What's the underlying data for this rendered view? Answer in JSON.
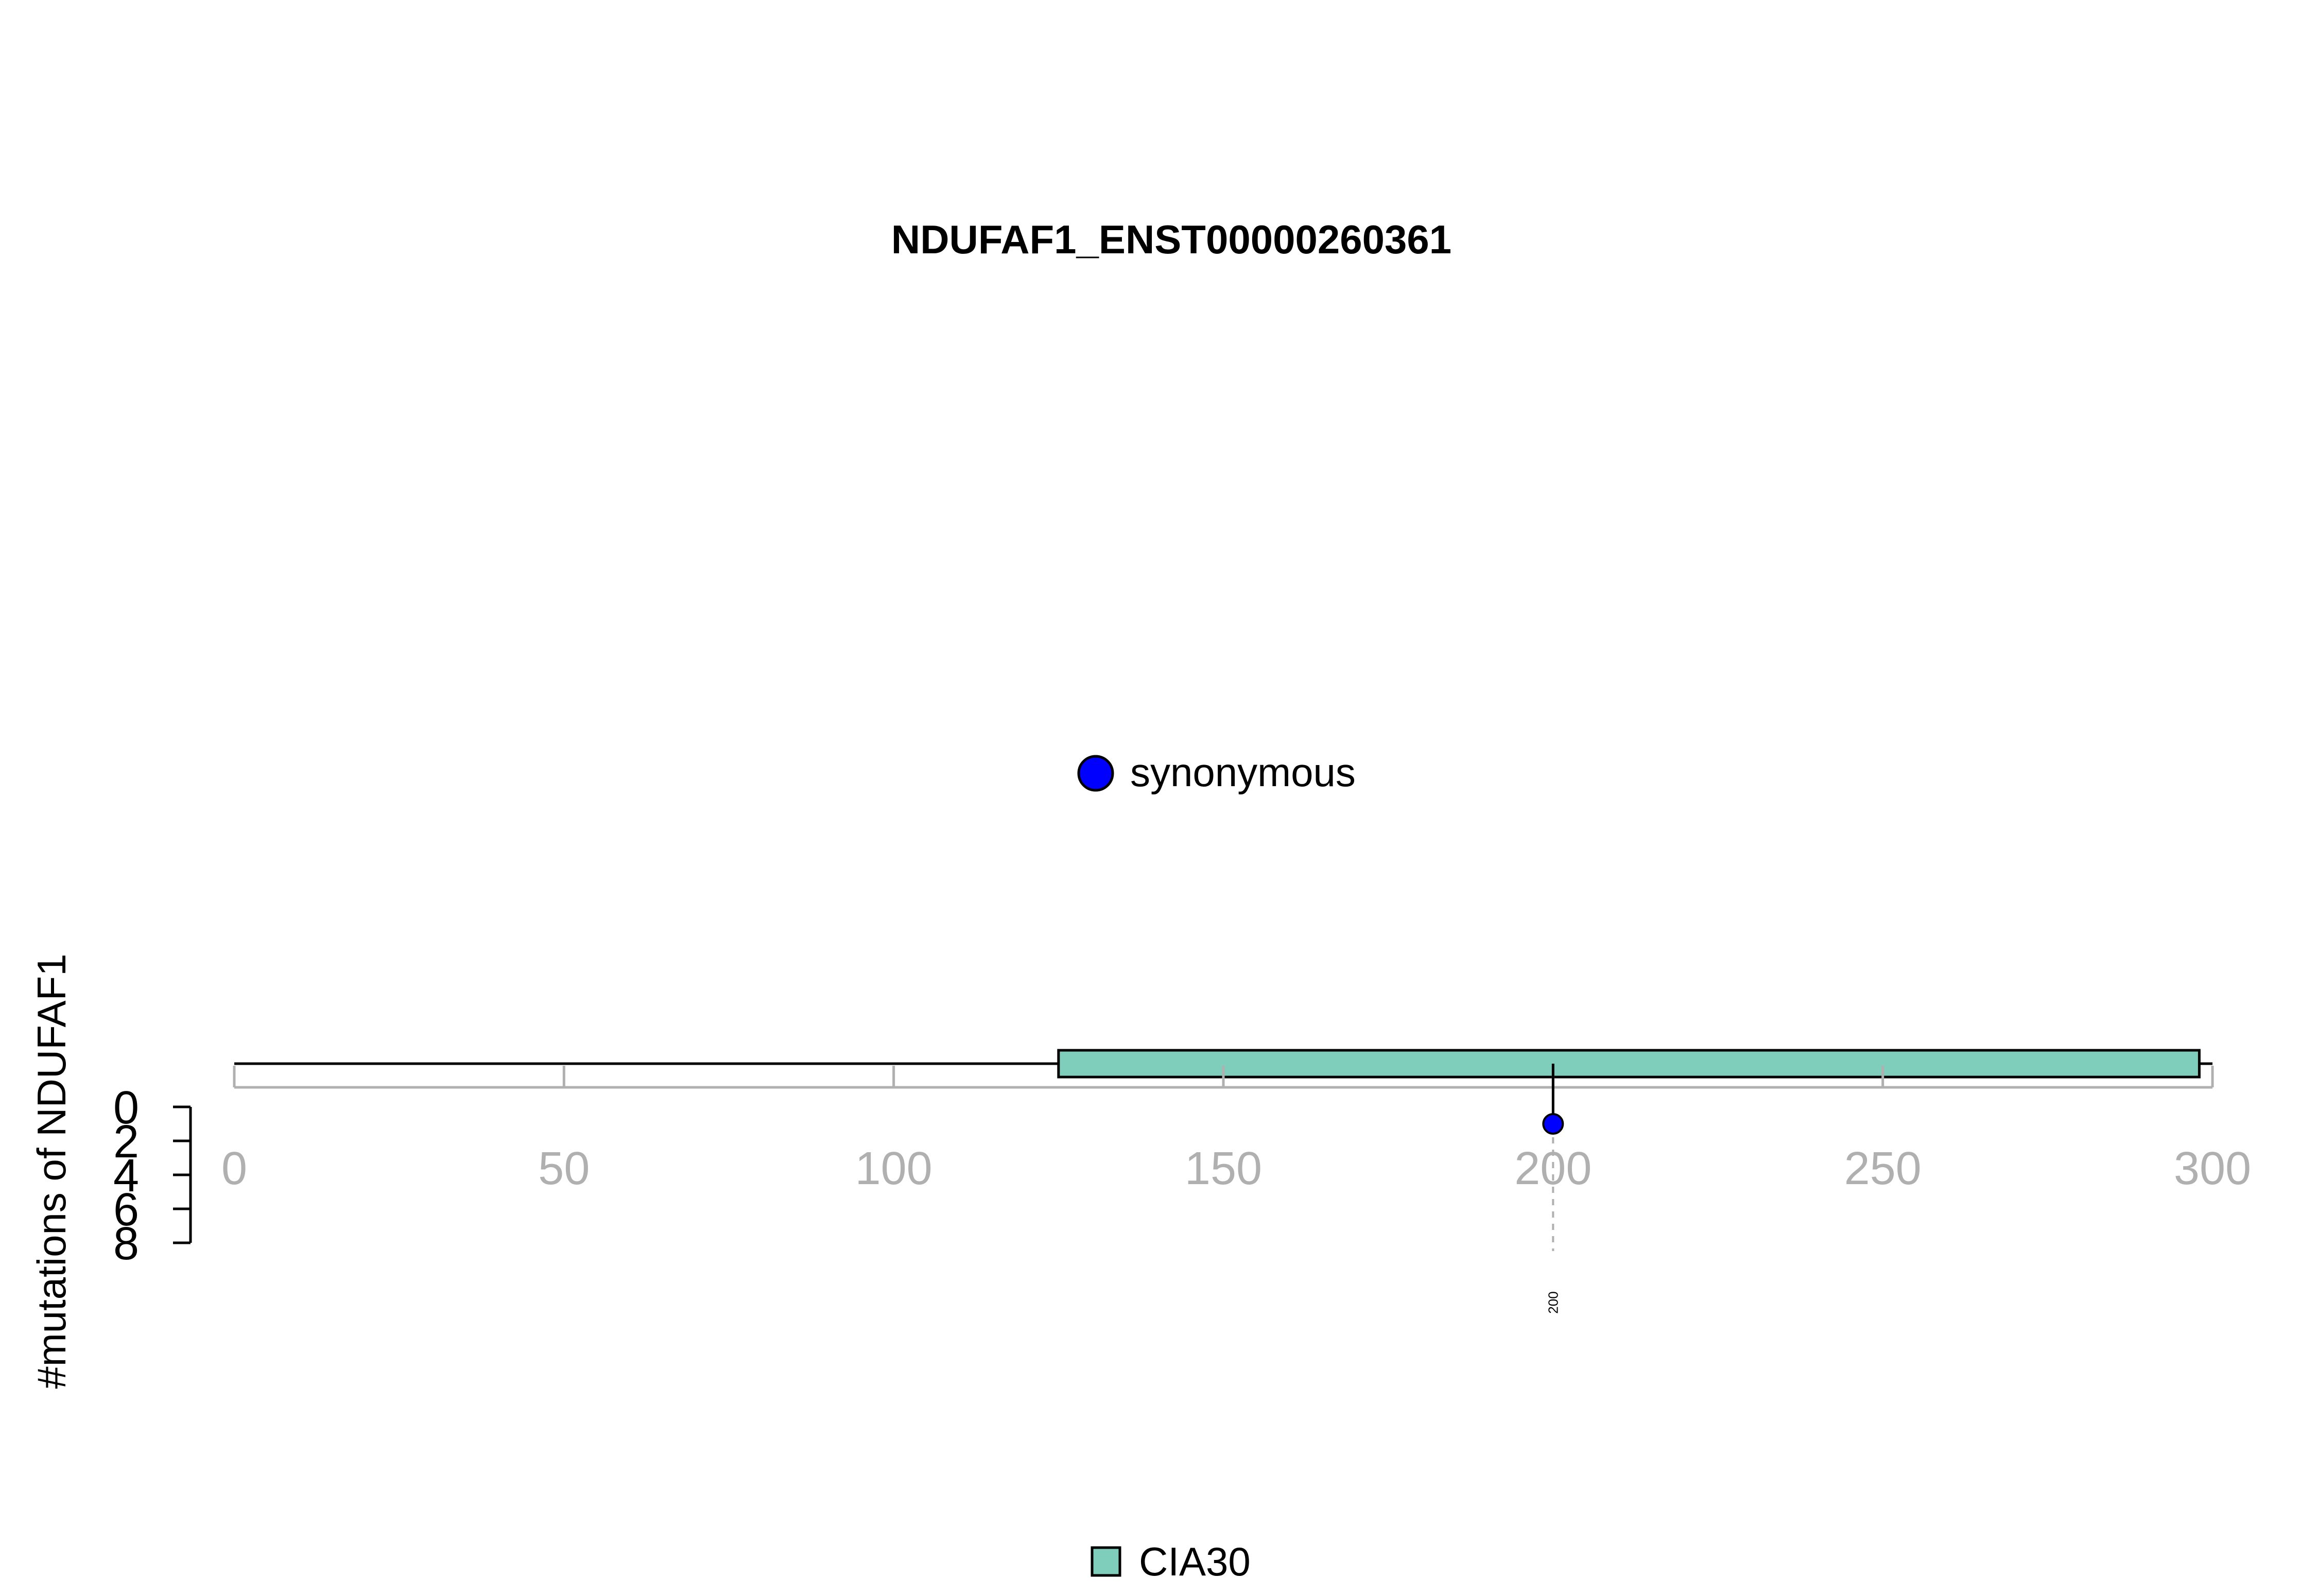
{
  "chart_data": {
    "type": "lollipop",
    "title": "NDUFAF1_ENST00000260361",
    "ylabel": "#mutations of NDUFAF1",
    "xlim": [
      0,
      300
    ],
    "ylim": [
      0,
      8
    ],
    "x_ticks": [
      "0",
      "50",
      "100",
      "150",
      "200",
      "250",
      "300"
    ],
    "y_ticks": [
      "0",
      "2",
      "4",
      "6",
      "8"
    ],
    "protein_length": 300,
    "domains": [
      {
        "name": "CIA30",
        "start": 125,
        "end": 298,
        "color": "#7fcdbb"
      }
    ],
    "mutation_legend": [
      {
        "label": "synonymous",
        "color": "#0000ff"
      }
    ],
    "mutations": [
      {
        "position": 200,
        "count": 1,
        "type": "synonymous",
        "label": "200"
      }
    ],
    "axis_color": "#b0b0b0"
  }
}
